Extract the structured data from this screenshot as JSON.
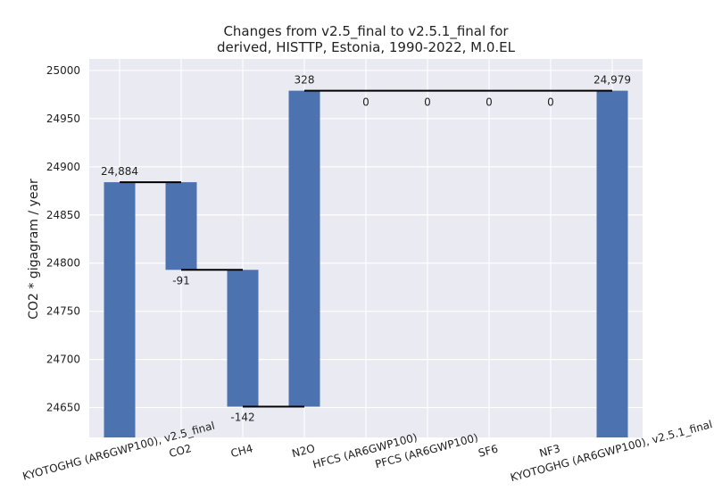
{
  "chart_data": {
    "type": "waterfall",
    "title_lines": [
      "Changes from v2.5_final to v2.5.1_final for",
      "derived, HISTTP, Estonia, 1990-2022, M.0.EL"
    ],
    "ylabel": "CO2 * gigagram / year",
    "xlabel": "",
    "ylim": [
      24619,
      25012
    ],
    "yticks": [
      24650,
      24700,
      24750,
      24800,
      24850,
      24900,
      24950,
      25000
    ],
    "grid": true,
    "categories": [
      "KYOTOGHG (AR6GWP100), v2.5_final",
      "CO2",
      "CH4",
      "N2O",
      "HFCS (AR6GWP100)",
      "PFCS (AR6GWP100)",
      "SF6",
      "NF3",
      "KYOTOGHG (AR6GWP100), v2.5.1_final"
    ],
    "bars": [
      {
        "kind": "total",
        "bottom": 24619,
        "top": 24884,
        "label": "24,884"
      },
      {
        "kind": "delta",
        "bottom": 24793,
        "top": 24884,
        "label": "-91"
      },
      {
        "kind": "delta",
        "bottom": 24651,
        "top": 24793,
        "label": "-142"
      },
      {
        "kind": "delta",
        "bottom": 24651,
        "top": 24979,
        "label": "328"
      },
      {
        "kind": "delta",
        "bottom": 24979,
        "top": 24979,
        "label": "0"
      },
      {
        "kind": "delta",
        "bottom": 24979,
        "top": 24979,
        "label": "0"
      },
      {
        "kind": "delta",
        "bottom": 24979,
        "top": 24979,
        "label": "0"
      },
      {
        "kind": "delta",
        "bottom": 24979,
        "top": 24979,
        "label": "0"
      },
      {
        "kind": "total",
        "bottom": 24619,
        "top": 24979,
        "label": "24,979"
      }
    ],
    "connectors": [
      {
        "from": 0,
        "to": 1,
        "level": 24884
      },
      {
        "from": 1,
        "to": 2,
        "level": 24793
      },
      {
        "from": 2,
        "to": 3,
        "level": 24651
      },
      {
        "from": 3,
        "to": 8,
        "level": 24979
      }
    ],
    "colors": {
      "bar": "#4c72b0",
      "plot_background": "#eaeaf2",
      "grid": "#ffffff",
      "connector": "#000000"
    }
  }
}
